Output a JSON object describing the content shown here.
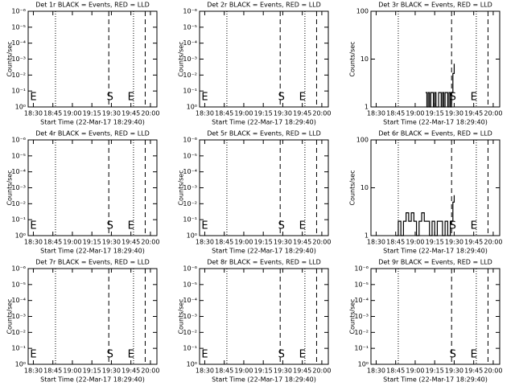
{
  "chart_data": [
    {
      "type": "empty",
      "title": "Det 1r BLACK = Events, RED = LLD",
      "ylabel": "Counts/sec",
      "xlabel": "Start Time (22-Mar-17 18:29:40)",
      "log_y": true,
      "xlim": [
        "18:26",
        "20:05"
      ],
      "xticks": [
        "18:30",
        "18:45",
        "19:00",
        "19:15",
        "19:30",
        "19:45",
        "20:00"
      ],
      "ylim": [
        1,
        1e-06
      ],
      "yticks": [
        {
          "value": 1,
          "label": "10⁰"
        },
        {
          "value": 0.1,
          "label": "10⁻¹"
        },
        {
          "value": 0.01,
          "label": "10⁻²"
        },
        {
          "value": 0.001,
          "label": "10⁻³"
        },
        {
          "value": 0.0001,
          "label": "10⁻⁴"
        },
        {
          "value": 1e-05,
          "label": "10⁻⁵"
        },
        {
          "value": 1e-06,
          "label": "10⁻⁶"
        }
      ],
      "lines": [
        {
          "x": "18:47",
          "style": "dotted"
        },
        {
          "x": "19:28",
          "style": "dashed"
        },
        {
          "x": "19:47",
          "style": "dotted"
        },
        {
          "x": "19:56",
          "style": "dashed"
        }
      ],
      "events": [
        {
          "x": "18:30",
          "text": "E"
        },
        {
          "x": "19:29",
          "text": "S"
        },
        {
          "x": "19:45",
          "text": "E"
        }
      ]
    },
    {
      "type": "empty",
      "title": "Det 2r BLACK = Events, RED = LLD",
      "ylabel": "Counts/sec",
      "xlabel": "Start Time (22-Mar-17 18:29:40)",
      "log_y": true,
      "xlim": [
        "18:26",
        "20:05"
      ],
      "xticks": [
        "18:30",
        "18:45",
        "19:00",
        "19:15",
        "19:30",
        "19:45",
        "20:00"
      ],
      "ylim": [
        1,
        1e-06
      ],
      "yticks": [
        {
          "value": 1,
          "label": "10⁰"
        },
        {
          "value": 0.1,
          "label": "10⁻¹"
        },
        {
          "value": 0.01,
          "label": "10⁻²"
        },
        {
          "value": 0.001,
          "label": "10⁻³"
        },
        {
          "value": 0.0001,
          "label": "10⁻⁴"
        },
        {
          "value": 1e-05,
          "label": "10⁻⁵"
        },
        {
          "value": 1e-06,
          "label": "10⁻⁶"
        }
      ],
      "lines": [
        {
          "x": "18:47",
          "style": "dotted"
        },
        {
          "x": "19:28",
          "style": "dashed"
        },
        {
          "x": "19:47",
          "style": "dotted"
        },
        {
          "x": "19:56",
          "style": "dashed"
        }
      ],
      "events": [
        {
          "x": "18:30",
          "text": "E"
        },
        {
          "x": "19:29",
          "text": "S"
        },
        {
          "x": "19:45",
          "text": "E"
        }
      ]
    },
    {
      "type": "line",
      "title": "Det 3r BLACK = Events, RED = LLD",
      "ylabel": "Counts/sec",
      "xlabel": "Start Time (22-Mar-17 18:29:40)",
      "log_y": true,
      "xlim": [
        "18:26",
        "20:05"
      ],
      "xticks": [
        "18:30",
        "18:45",
        "19:00",
        "19:15",
        "19:30",
        "19:45",
        "20:00"
      ],
      "ylim": [
        1,
        100
      ],
      "yticks": [
        1,
        10,
        100
      ],
      "x": [
        "19:08",
        "19:09",
        "19:10",
        "19:11",
        "19:12",
        "19:13",
        "19:14",
        "19:15",
        "19:16",
        "19:17",
        "19:18",
        "19:19",
        "19:20",
        "19:21",
        "19:22",
        "19:23",
        "19:24",
        "19:25",
        "19:26",
        "19:27",
        "19:28",
        "19:29",
        "19:30"
      ],
      "values": [
        2,
        1,
        2,
        1,
        2,
        2,
        1,
        2,
        1,
        1,
        2,
        2,
        1,
        2,
        1,
        2,
        2,
        1,
        2,
        1,
        2,
        5,
        8
      ],
      "color": "#000000",
      "lines": [
        {
          "x": "18:47",
          "style": "dotted"
        },
        {
          "x": "19:28",
          "style": "dashed"
        },
        {
          "x": "19:47",
          "style": "dotted"
        },
        {
          "x": "19:56",
          "style": "dashed"
        }
      ],
      "events": [
        {
          "x": "19:29",
          "text": "S"
        },
        {
          "x": "19:45",
          "text": "E"
        }
      ]
    },
    {
      "type": "empty",
      "title": "Det 4r BLACK = Events, RED = LLD",
      "ylabel": "Counts/sec",
      "xlabel": "Start Time (22-Mar-17 18:29:40)",
      "log_y": true,
      "xlim": [
        "18:26",
        "20:05"
      ],
      "xticks": [
        "18:30",
        "18:45",
        "19:00",
        "19:15",
        "19:30",
        "19:45",
        "20:00"
      ],
      "ylim": [
        1,
        1e-06
      ],
      "yticks": [
        {
          "value": 1,
          "label": "10⁰"
        },
        {
          "value": 0.1,
          "label": "10⁻¹"
        },
        {
          "value": 0.01,
          "label": "10⁻²"
        },
        {
          "value": 0.001,
          "label": "10⁻³"
        },
        {
          "value": 0.0001,
          "label": "10⁻⁴"
        },
        {
          "value": 1e-05,
          "label": "10⁻⁵"
        },
        {
          "value": 1e-06,
          "label": "10⁻⁶"
        }
      ],
      "lines": [
        {
          "x": "18:47",
          "style": "dotted"
        },
        {
          "x": "19:28",
          "style": "dashed"
        },
        {
          "x": "19:47",
          "style": "dotted"
        },
        {
          "x": "19:56",
          "style": "dashed"
        }
      ],
      "events": [
        {
          "x": "18:30",
          "text": "E"
        },
        {
          "x": "19:29",
          "text": "S"
        },
        {
          "x": "19:45",
          "text": "E"
        }
      ]
    },
    {
      "type": "empty",
      "title": "Det 5r BLACK = Events, RED = LLD",
      "ylabel": "Counts/sec",
      "xlabel": "Start Time (22-Mar-17 18:29:40)",
      "log_y": true,
      "xlim": [
        "18:26",
        "20:05"
      ],
      "xticks": [
        "18:30",
        "18:45",
        "19:00",
        "19:15",
        "19:30",
        "19:45",
        "20:00"
      ],
      "ylim": [
        1,
        1e-06
      ],
      "yticks": [
        {
          "value": 1,
          "label": "10⁰"
        },
        {
          "value": 0.1,
          "label": "10⁻¹"
        },
        {
          "value": 0.01,
          "label": "10⁻²"
        },
        {
          "value": 0.001,
          "label": "10⁻³"
        },
        {
          "value": 0.0001,
          "label": "10⁻⁴"
        },
        {
          "value": 1e-05,
          "label": "10⁻⁵"
        },
        {
          "value": 1e-06,
          "label": "10⁻⁶"
        }
      ],
      "lines": [
        {
          "x": "18:47",
          "style": "dotted"
        },
        {
          "x": "19:28",
          "style": "dashed"
        },
        {
          "x": "19:47",
          "style": "dotted"
        },
        {
          "x": "19:56",
          "style": "dashed"
        }
      ],
      "events": [
        {
          "x": "18:30",
          "text": "E"
        },
        {
          "x": "19:29",
          "text": "S"
        },
        {
          "x": "19:45",
          "text": "E"
        }
      ]
    },
    {
      "type": "line",
      "title": "Det 6r BLACK = Events, RED = LLD",
      "ylabel": "Counts/sec",
      "xlabel": "Start Time (22-Mar-17 18:29:40)",
      "log_y": true,
      "xlim": [
        "18:26",
        "20:05"
      ],
      "xticks": [
        "18:30",
        "18:45",
        "19:00",
        "19:15",
        "19:30",
        "19:45",
        "20:00"
      ],
      "ylim": [
        1,
        100
      ],
      "yticks": [
        1,
        10,
        100
      ],
      "x": [
        "18:45",
        "18:47",
        "18:49",
        "18:51",
        "18:53",
        "18:55",
        "18:57",
        "18:59",
        "19:01",
        "19:03",
        "19:05",
        "19:07",
        "19:09",
        "19:11",
        "19:13",
        "19:15",
        "19:17",
        "19:19",
        "19:21",
        "19:23",
        "19:25",
        "19:27",
        "19:29",
        "19:30"
      ],
      "values": [
        1,
        2,
        1,
        2,
        3,
        2,
        3,
        2,
        1,
        2,
        3,
        2,
        2,
        1,
        2,
        1,
        2,
        2,
        1,
        2,
        1,
        2,
        5,
        7
      ],
      "color": "#000000",
      "lines": [
        {
          "x": "18:47",
          "style": "dotted"
        },
        {
          "x": "19:28",
          "style": "dashed"
        },
        {
          "x": "19:47",
          "style": "dotted"
        },
        {
          "x": "19:56",
          "style": "dashed"
        }
      ],
      "events": [
        {
          "x": "19:29",
          "text": "S"
        },
        {
          "x": "19:45",
          "text": "E"
        }
      ]
    },
    {
      "type": "empty",
      "title": "Det 7r BLACK = Events, RED = LLD",
      "ylabel": "Counts/sec",
      "xlabel": "Start Time (22-Mar-17 18:29:40)",
      "log_y": true,
      "xlim": [
        "18:26",
        "20:05"
      ],
      "xticks": [
        "18:30",
        "18:45",
        "19:00",
        "19:15",
        "19:30",
        "19:45",
        "20:00"
      ],
      "ylim": [
        1,
        1e-06
      ],
      "yticks": [
        {
          "value": 1,
          "label": "10⁰"
        },
        {
          "value": 0.1,
          "label": "10⁻¹"
        },
        {
          "value": 0.01,
          "label": "10⁻²"
        },
        {
          "value": 0.001,
          "label": "10⁻³"
        },
        {
          "value": 0.0001,
          "label": "10⁻⁴"
        },
        {
          "value": 1e-05,
          "label": "10⁻⁵"
        },
        {
          "value": 1e-06,
          "label": "10⁻⁶"
        }
      ],
      "lines": [
        {
          "x": "18:47",
          "style": "dotted"
        },
        {
          "x": "19:28",
          "style": "dashed"
        },
        {
          "x": "19:47",
          "style": "dotted"
        },
        {
          "x": "19:56",
          "style": "dashed"
        }
      ],
      "events": [
        {
          "x": "18:30",
          "text": "E"
        },
        {
          "x": "19:29",
          "text": "S"
        },
        {
          "x": "19:45",
          "text": "E"
        }
      ]
    },
    {
      "type": "empty",
      "title": "Det 8r BLACK = Events, RED = LLD",
      "ylabel": "Counts/sec",
      "xlabel": "Start Time (22-Mar-17 18:29:40)",
      "log_y": true,
      "xlim": [
        "18:26",
        "20:05"
      ],
      "xticks": [
        "18:30",
        "18:45",
        "19:00",
        "19:15",
        "19:30",
        "19:45",
        "20:00"
      ],
      "ylim": [
        1,
        1e-06
      ],
      "yticks": [
        {
          "value": 1,
          "label": "10⁰"
        },
        {
          "value": 0.1,
          "label": "10⁻¹"
        },
        {
          "value": 0.01,
          "label": "10⁻²"
        },
        {
          "value": 0.001,
          "label": "10⁻³"
        },
        {
          "value": 0.0001,
          "label": "10⁻⁴"
        },
        {
          "value": 1e-05,
          "label": "10⁻⁵"
        },
        {
          "value": 1e-06,
          "label": "10⁻⁶"
        }
      ],
      "lines": [
        {
          "x": "18:47",
          "style": "dotted"
        },
        {
          "x": "19:28",
          "style": "dashed"
        },
        {
          "x": "19:47",
          "style": "dotted"
        },
        {
          "x": "19:56",
          "style": "dashed"
        }
      ],
      "events": [
        {
          "x": "18:30",
          "text": "E"
        },
        {
          "x": "19:29",
          "text": "S"
        },
        {
          "x": "19:45",
          "text": "E"
        }
      ]
    },
    {
      "type": "empty",
      "title": "Det 9r BLACK = Events, RED = LLD",
      "ylabel": "Counts/sec",
      "xlabel": "Start Time (22-Mar-17 18:29:40)",
      "log_y": true,
      "xlim": [
        "18:26",
        "20:05"
      ],
      "xticks": [
        "18:30",
        "18:45",
        "19:00",
        "19:15",
        "19:30",
        "19:45",
        "20:00"
      ],
      "ylim": [
        1,
        1e-06
      ],
      "yticks": [
        {
          "value": 1,
          "label": "10⁰"
        },
        {
          "value": 0.1,
          "label": "10⁻¹"
        },
        {
          "value": 0.01,
          "label": "10⁻²"
        },
        {
          "value": 0.001,
          "label": "10⁻³"
        },
        {
          "value": 0.0001,
          "label": "10⁻⁴"
        },
        {
          "value": 1e-05,
          "label": "10⁻⁵"
        },
        {
          "value": 1e-06,
          "label": "10⁻⁶"
        }
      ],
      "lines": [
        {
          "x": "18:47",
          "style": "dotted"
        },
        {
          "x": "19:28",
          "style": "dashed"
        },
        {
          "x": "19:47",
          "style": "dotted"
        },
        {
          "x": "19:56",
          "style": "dashed"
        }
      ],
      "events": [
        {
          "x": "19:29",
          "text": "S"
        },
        {
          "x": "19:45",
          "text": "E"
        }
      ]
    }
  ]
}
